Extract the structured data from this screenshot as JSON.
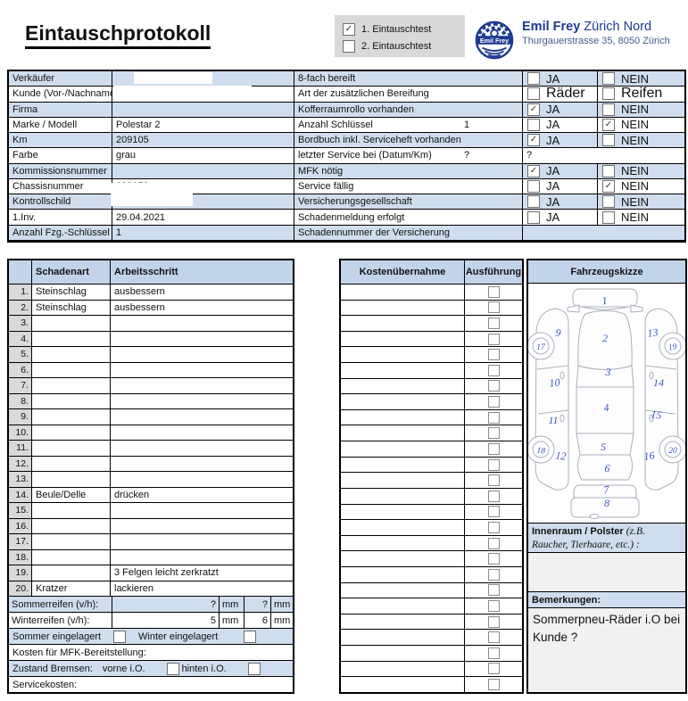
{
  "page": {
    "title": "Eintauschprotokoll",
    "tests": [
      {
        "label": "1. Eintauschtest",
        "checked": true
      },
      {
        "label": "2. Eintauschtest",
        "checked": false
      }
    ],
    "brand": {
      "logo_text": "Emil Frey",
      "name_bold": "Emil Frey",
      "name_rest": " Zürich Nord",
      "address": "Thurgauerstrasse 35, 8050 Zürich"
    }
  },
  "vehicle": {
    "rows": [
      {
        "label": "Verkäufer",
        "value": ""
      },
      {
        "label": "Kunde (Vor-/Nachname)",
        "value": ""
      },
      {
        "label": "Firma",
        "value": ""
      },
      {
        "label": "Marke / Modell",
        "value": "Polestar 2"
      },
      {
        "label": "Km",
        "value": "209105"
      },
      {
        "label": "Farbe",
        "value": "grau"
      },
      {
        "label": "Kommissionsnummer",
        "value": ""
      },
      {
        "label": "Chassisnummer",
        "value": "022159"
      },
      {
        "label": "Kontrollschild",
        "value": ""
      },
      {
        "label": "1.Inv.",
        "value": "29.04.2021"
      },
      {
        "label": "Anzahl Fzg.-Schlüssel",
        "value": "1"
      }
    ]
  },
  "equipment": {
    "yes_label": "JA",
    "no_label": "NEIN",
    "rows": [
      {
        "label": "8-fach bereift",
        "kind": "yn",
        "yes": false,
        "no": false
      },
      {
        "label": "Art der zusätzlichen Bereifung",
        "kind": "yn",
        "yes_label": "Räder",
        "no_label": "Reifen",
        "yes": false,
        "no": false,
        "big": true
      },
      {
        "label": "Kofferraumrollo vorhanden",
        "kind": "yn",
        "yes": true,
        "no": false
      },
      {
        "label": "Anzahl Schlüssel",
        "mid": "1",
        "kind": "yn",
        "yes": false,
        "no": true
      },
      {
        "label": "Bordbuch inkl. Serviceheft vorhanden",
        "kind": "yn",
        "yes": true,
        "no": false
      },
      {
        "label": "letzter Service bei (Datum/Km)",
        "mid": "?",
        "kind": "text",
        "value": "?"
      },
      {
        "label": "MFK nötig",
        "kind": "yn",
        "yes": true,
        "no": false
      },
      {
        "label": "Service fällig",
        "kind": "yn",
        "yes": false,
        "no": true
      },
      {
        "label": "Versicherungsgesellschaft",
        "kind": "yn",
        "yes": false,
        "no": false
      },
      {
        "label": "Schadenmeldung erfolgt",
        "kind": "yn",
        "yes": false,
        "no": false
      },
      {
        "label": "Schadennummer der Versicherung",
        "kind": "empty"
      }
    ]
  },
  "damage": {
    "headers": {
      "schadenart": "Schadenart",
      "arbeitsschritt": "Arbeitsschritt",
      "kosten": "Kostenübernahme",
      "ausfuehrung": "Ausführung",
      "skizze": "Fahrzeugskizze"
    },
    "rows": [
      {
        "nr": "1.",
        "art": "Steinschlag",
        "schritt": "ausbessern"
      },
      {
        "nr": "2.",
        "art": "Steinschlag",
        "schritt": "ausbessern"
      },
      {
        "nr": "3.",
        "art": "",
        "schritt": ""
      },
      {
        "nr": "4.",
        "art": "",
        "schritt": ""
      },
      {
        "nr": "5.",
        "art": "",
        "schritt": ""
      },
      {
        "nr": "6.",
        "art": "",
        "schritt": ""
      },
      {
        "nr": "7.",
        "art": "",
        "schritt": ""
      },
      {
        "nr": "8.",
        "art": "",
        "schritt": ""
      },
      {
        "nr": "9.",
        "art": "",
        "schritt": ""
      },
      {
        "nr": "10.",
        "art": "",
        "schritt": ""
      },
      {
        "nr": "11.",
        "art": "",
        "schritt": ""
      },
      {
        "nr": "12.",
        "art": "",
        "schritt": ""
      },
      {
        "nr": "13.",
        "art": "",
        "schritt": ""
      },
      {
        "nr": "14.",
        "art": "Beule/Delle",
        "schritt": "drücken"
      },
      {
        "nr": "15.",
        "art": "",
        "schritt": ""
      },
      {
        "nr": "16.",
        "art": "",
        "schritt": ""
      },
      {
        "nr": "17.",
        "art": "",
        "schritt": ""
      },
      {
        "nr": "18.",
        "art": "",
        "schritt": ""
      },
      {
        "nr": "19.",
        "art": "",
        "schritt": "3 Felgen leicht zerkratzt"
      },
      {
        "nr": "20.",
        "art": "Kratzer",
        "schritt": "lackieren"
      }
    ],
    "execution": {
      "count": 26,
      "checked": []
    }
  },
  "bottom": {
    "sommer_label": "Sommerreifen (v/h):",
    "sommer_front": "?",
    "sommer_rear": "?",
    "winter_label": "Winterreifen (v/h):",
    "winter_front": "5",
    "winter_rear": "6",
    "mm": "mm",
    "sommer_stored": "Sommer eingelagert",
    "sommer_stored_checked": false,
    "winter_stored": "Winter eingelagert",
    "winter_stored_checked": false,
    "mfk": "Kosten für MFK-Bereitstellung:",
    "bremsen": "Zustand Bremsen:",
    "vorne": "vorne i.O.",
    "vorne_checked": false,
    "hinten": "hinten i.O.",
    "hinten_checked": false,
    "service": "Servicekosten:"
  },
  "sketch": {
    "zones": [
      "1",
      "2",
      "3",
      "4",
      "5",
      "6",
      "7",
      "8",
      "9",
      "10",
      "11",
      "12",
      "13",
      "14",
      "15",
      "16",
      "17",
      "18",
      "19",
      "20"
    ]
  },
  "interior": {
    "title": "Innenraum / Polster",
    "hint": "(z.B. Raucher, Tierhaare, etc.) :"
  },
  "remarks": {
    "title": "Bemerkungen:",
    "text": "Sommerpneu-Räder i.O  bei Kunde ?"
  }
}
